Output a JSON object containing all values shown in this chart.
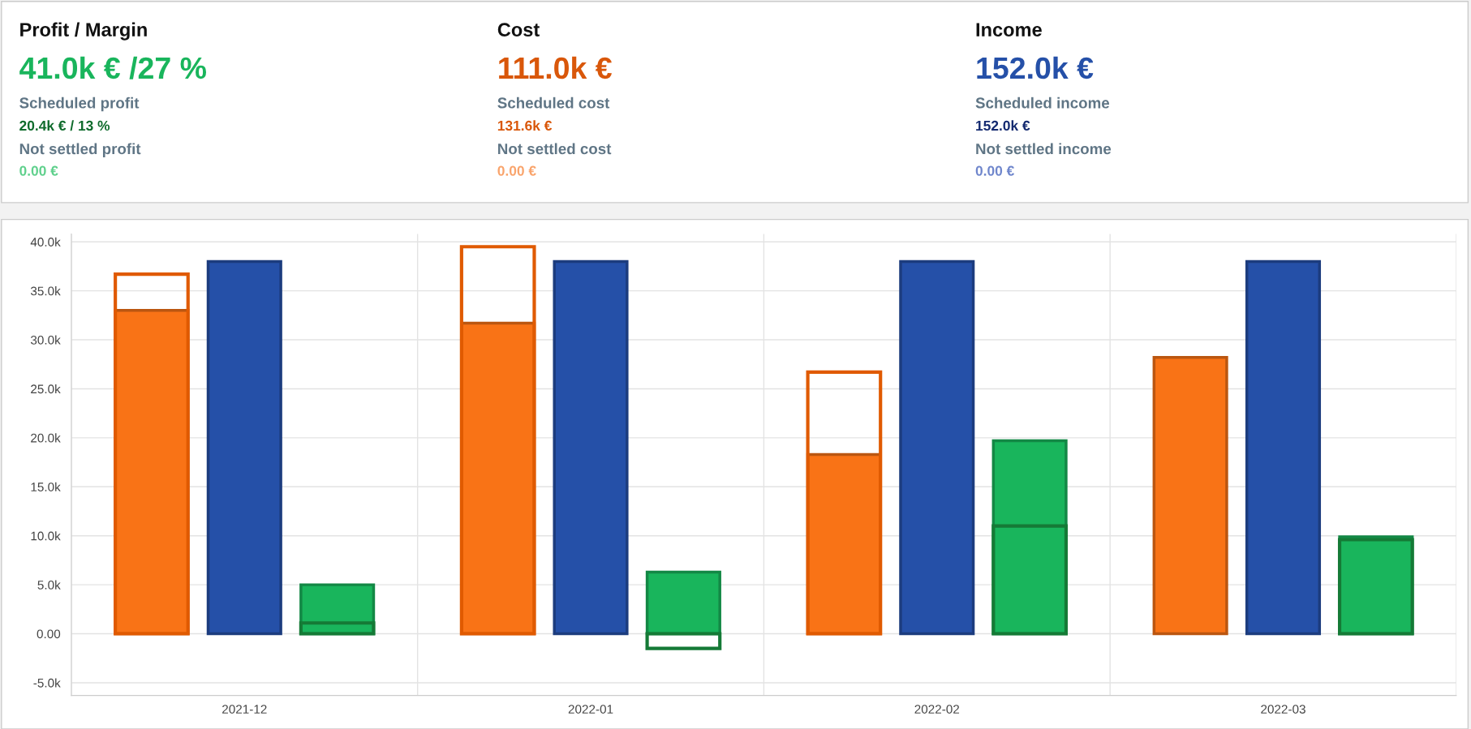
{
  "chart_data": [
    {
      "type": "other",
      "title": "Profit / Margin",
      "annotations": [
        "41.0k € /27 %",
        "Scheduled profit",
        "20.4k € / 13 %",
        "Not settled profit",
        "0.00 €"
      ],
      "colors": [
        "#19b55c",
        "#5f7585",
        "#0f6b2c",
        "#5f7585",
        "#5fd08c"
      ]
    },
    {
      "type": "other",
      "title": "Cost",
      "annotations": [
        "111.0k €",
        "Scheduled cost",
        "131.6k €",
        "Not settled cost",
        "0.00 €"
      ],
      "colors": [
        "#d9570a",
        "#5f7585",
        "#d9570a",
        "#5f7585",
        "#f9a46c"
      ]
    },
    {
      "type": "other",
      "title": "Income",
      "annotations": [
        "152.0k €",
        "Scheduled income",
        "152.0k €",
        "Not settled income",
        "0.00 €"
      ],
      "colors": [
        "#2550a8",
        "#5f7585",
        "#142a70",
        "#5f7585",
        "#6f86cc"
      ]
    },
    {
      "type": "bar",
      "categories": [
        "2021-12",
        "2022-01",
        "2022-02",
        "2022-03"
      ],
      "series": [
        {
          "color": "#f97316",
          "values": [
            33.0,
            31.7,
            18.3,
            28.2
          ]
        },
        {
          "color": "#e05a00",
          "line_style": "solid",
          "values": [
            36.7,
            39.5,
            26.7,
            null
          ]
        },
        {
          "color": "#2550a8",
          "values": [
            38.0,
            38.0,
            38.0,
            38.0
          ]
        },
        {
          "color": "#19b55c",
          "values": [
            5.0,
            6.3,
            19.7,
            9.9
          ]
        },
        {
          "color": "#157a36",
          "line_style": "solid",
          "values": [
            1.1,
            -1.5,
            11.0,
            9.6
          ]
        }
      ],
      "ylim": [
        -6.3,
        40.8
      ],
      "yticks": [
        {
          "value": -5,
          "label": "-5.0k"
        },
        {
          "value": 0,
          "label": "0.00"
        },
        {
          "value": 5,
          "label": "5.0k"
        },
        {
          "value": 10,
          "label": "10.0k"
        },
        {
          "value": 15,
          "label": "15.0k"
        },
        {
          "value": 20,
          "label": "20.0k"
        },
        {
          "value": 25,
          "label": "25.0k"
        },
        {
          "value": 30,
          "label": "30.0k"
        },
        {
          "value": 35,
          "label": "35.0k"
        },
        {
          "value": 40,
          "label": "40.0k"
        }
      ],
      "grid": true
    }
  ]
}
